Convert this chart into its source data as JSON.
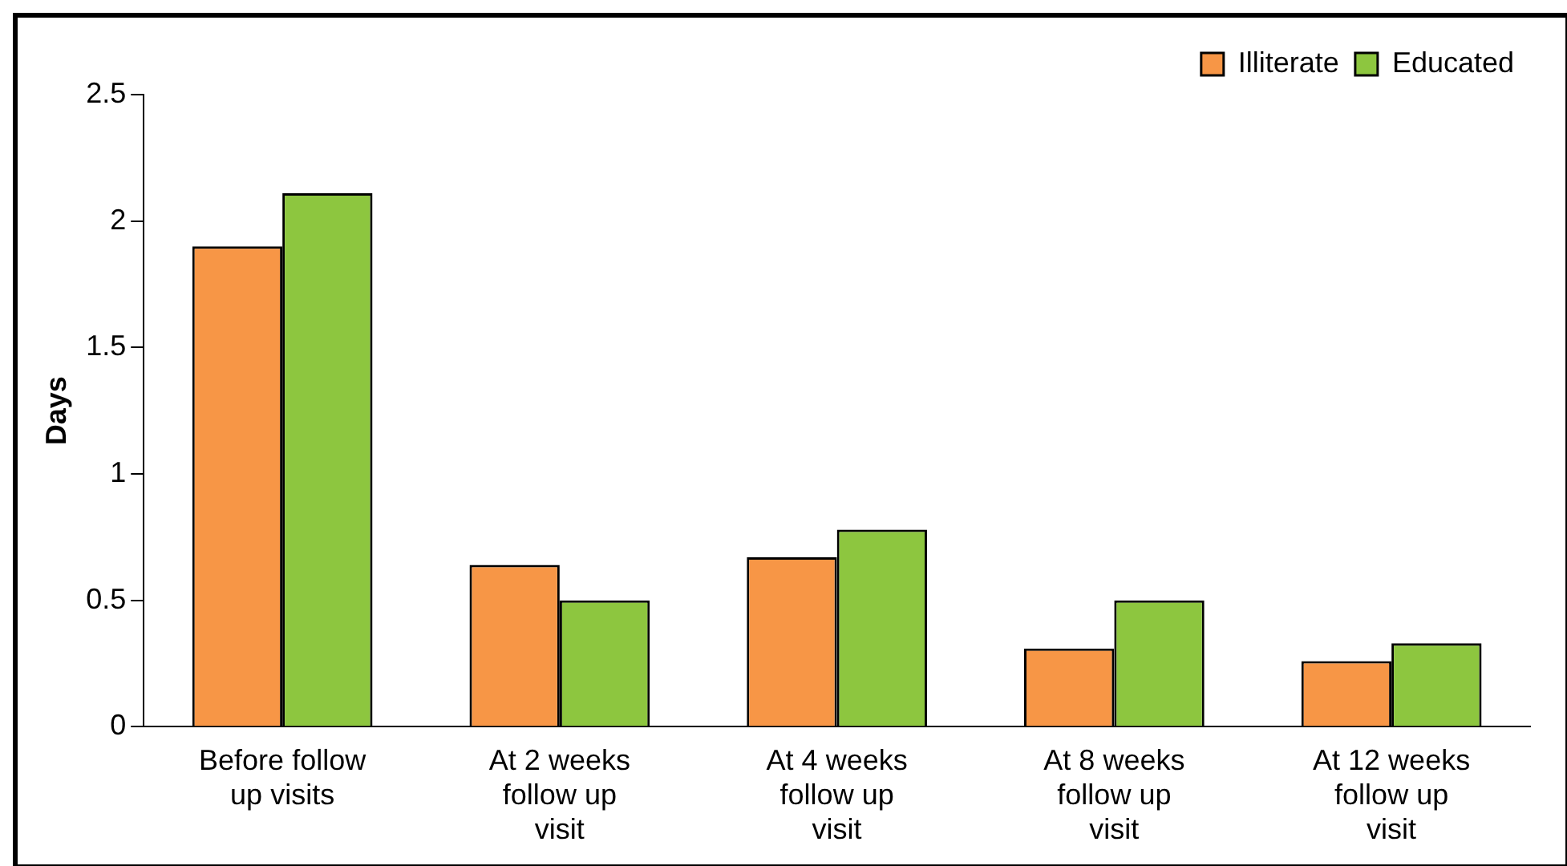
{
  "chart_data": {
    "type": "bar",
    "ylabel": "Days",
    "categories": [
      "Before follow up visits",
      "At 2 weeks follow up visit",
      "At 4 weeks follow up visit",
      "At 8 weeks follow up visit",
      "At 12 weeks follow up visit"
    ],
    "series": [
      {
        "name": "Illiterate",
        "color": "#f79646",
        "values": [
          1.9,
          0.64,
          0.67,
          0.31,
          0.26
        ]
      },
      {
        "name": "Educated",
        "color": "#8dc63f",
        "values": [
          2.11,
          0.5,
          0.78,
          0.5,
          0.33
        ]
      }
    ],
    "ylim": [
      0,
      2.5
    ],
    "yticks": [
      0,
      0.5,
      1,
      1.5,
      2,
      2.5
    ],
    "grid": false,
    "legend": "top right"
  }
}
